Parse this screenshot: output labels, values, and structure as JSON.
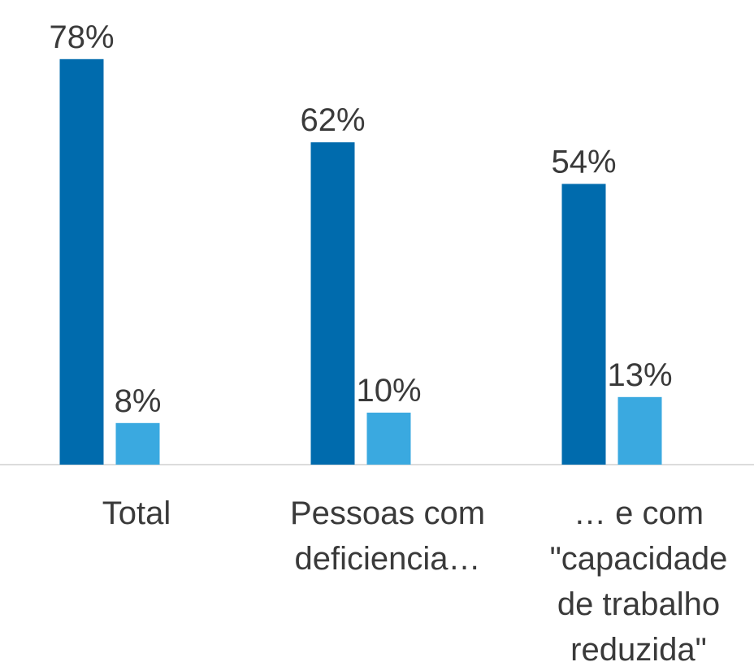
{
  "chart_data": {
    "type": "bar",
    "categories": [
      "Total",
      "Pessoas com deficiencia…",
      "… e com \"capacidade de trabalho reduzida\""
    ],
    "series": [
      {
        "color": "#006bad",
        "values": [
          78,
          62,
          54
        ],
        "value_labels": [
          "78%",
          "62%",
          "54%"
        ]
      },
      {
        "color": "#3aa9e0",
        "values": [
          8,
          10,
          13
        ],
        "value_labels": [
          "8%",
          "10%",
          "13%"
        ]
      }
    ],
    "ylim": [
      0,
      85
    ]
  }
}
